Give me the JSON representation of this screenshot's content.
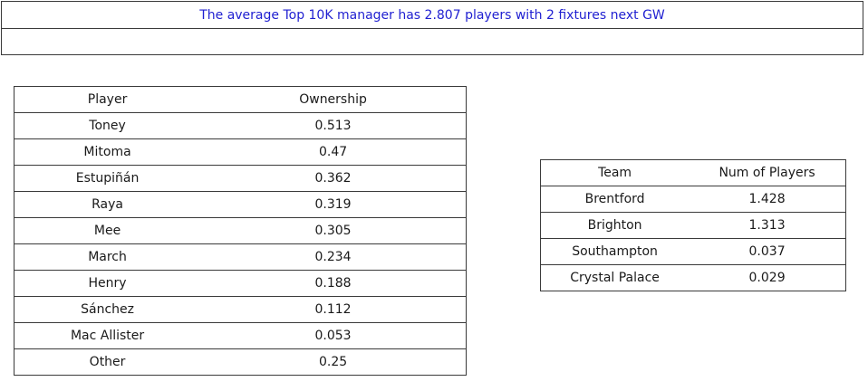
{
  "banner": {
    "message": "The average Top 10K manager has 2.807 players with 2 fixtures next GW",
    "second_row": ""
  },
  "players_table": {
    "headers": [
      "Player",
      "Ownership"
    ],
    "rows": [
      {
        "player": "Toney",
        "ownership": "0.513"
      },
      {
        "player": "Mitoma",
        "ownership": "0.47"
      },
      {
        "player": "Estupiñán",
        "ownership": "0.362"
      },
      {
        "player": "Raya",
        "ownership": "0.319"
      },
      {
        "player": "Mee",
        "ownership": "0.305"
      },
      {
        "player": "March",
        "ownership": "0.234"
      },
      {
        "player": "Henry",
        "ownership": "0.188"
      },
      {
        "player": "Sánchez",
        "ownership": "0.112"
      },
      {
        "player": "Mac Allister",
        "ownership": "0.053"
      },
      {
        "player": "Other",
        "ownership": "0.25"
      }
    ]
  },
  "teams_table": {
    "headers": [
      "Team",
      "Num of Players"
    ],
    "rows": [
      {
        "team": "Brentford",
        "num": "1.428"
      },
      {
        "team": "Brighton",
        "num": "1.313"
      },
      {
        "team": "Southampton",
        "num": "0.037"
      },
      {
        "team": "Crystal Palace",
        "num": "0.029"
      }
    ]
  }
}
